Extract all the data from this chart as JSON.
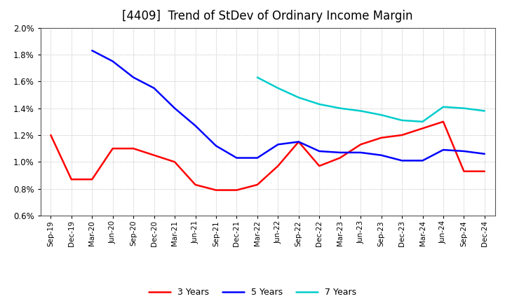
{
  "title": "[4409]  Trend of StDev of Ordinary Income Margin",
  "x_labels": [
    "Sep-19",
    "Dec-19",
    "Mar-20",
    "Jun-20",
    "Sep-20",
    "Dec-20",
    "Mar-21",
    "Jun-21",
    "Sep-21",
    "Dec-21",
    "Mar-22",
    "Jun-22",
    "Sep-22",
    "Dec-22",
    "Mar-23",
    "Jun-23",
    "Sep-23",
    "Dec-23",
    "Mar-24",
    "Jun-24",
    "Sep-24",
    "Dec-24"
  ],
  "ylim": [
    0.006,
    0.02
  ],
  "yticks": [
    0.006,
    0.008,
    0.01,
    0.012,
    0.014,
    0.016,
    0.018,
    0.02
  ],
  "series": {
    "3 Years": {
      "color": "#FF0000",
      "data": [
        0.012,
        0.0087,
        0.0087,
        0.011,
        0.011,
        0.0105,
        0.01,
        0.0083,
        0.0079,
        0.0079,
        0.0083,
        0.0097,
        0.0115,
        0.0097,
        0.0103,
        0.0113,
        0.0118,
        0.012,
        0.0125,
        0.013,
        0.0093,
        0.0093
      ]
    },
    "5 Years": {
      "color": "#0000FF",
      "data": [
        null,
        null,
        0.0183,
        0.0175,
        0.0163,
        0.0155,
        0.014,
        0.0127,
        0.0112,
        0.0103,
        0.0103,
        0.0113,
        0.0115,
        0.0108,
        0.0107,
        0.0107,
        0.0105,
        0.0101,
        0.0101,
        0.0109,
        0.0108,
        0.0106
      ]
    },
    "7 Years": {
      "color": "#00CCCC",
      "data": [
        null,
        null,
        null,
        null,
        null,
        null,
        null,
        null,
        null,
        null,
        0.0163,
        0.0155,
        0.0148,
        0.0143,
        0.014,
        0.0138,
        0.0135,
        0.0131,
        0.013,
        0.0141,
        0.014,
        0.0138
      ]
    },
    "10 Years": {
      "color": "#008000",
      "data": [
        null,
        null,
        null,
        null,
        null,
        null,
        null,
        null,
        null,
        null,
        null,
        null,
        null,
        null,
        null,
        null,
        null,
        null,
        null,
        null,
        null,
        null
      ]
    }
  },
  "background_color": "#FFFFFF",
  "grid_color": "#AAAAAA",
  "title_fontsize": 12,
  "legend_fontsize": 9,
  "line_width": 1.8
}
